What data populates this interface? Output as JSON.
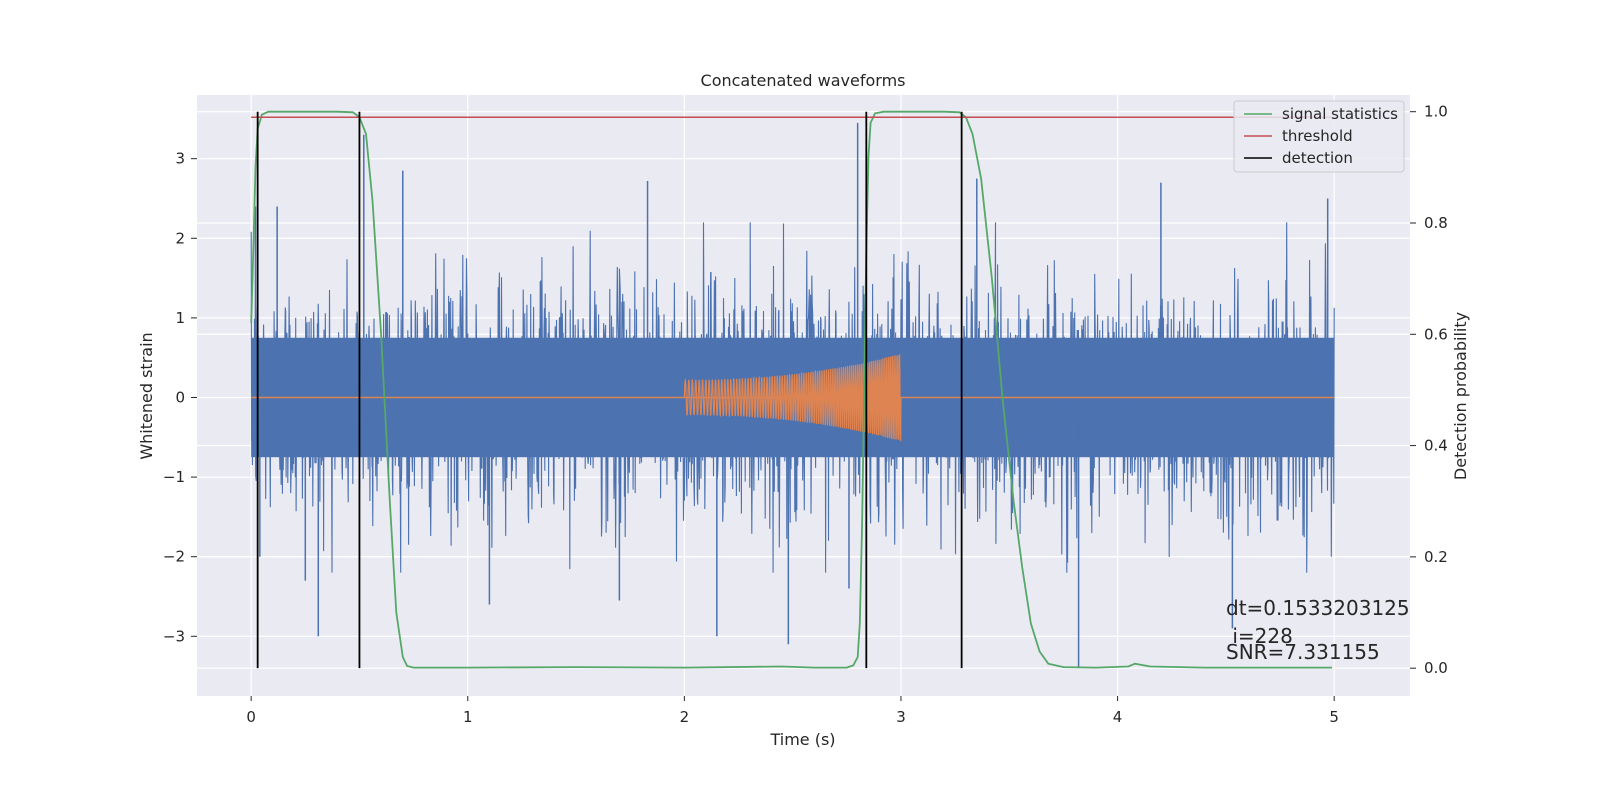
{
  "chart_data": {
    "type": "line",
    "title": "Concatenated waveforms",
    "xlabel": "Time (s)",
    "ylabel": "Whitened strain",
    "ylabel_right": "Detection probability",
    "xlim": [
      -0.25,
      5.35
    ],
    "ylim": [
      -3.75,
      3.8
    ],
    "ylim_right": [
      -0.05,
      1.03
    ],
    "x_ticks": [
      0,
      1,
      2,
      3,
      4,
      5
    ],
    "x_tick_labels": [
      "0",
      "1",
      "2",
      "3",
      "4",
      "5"
    ],
    "y_ticks": [
      -3,
      -2,
      -1,
      0,
      1,
      2,
      3
    ],
    "y_tick_labels": [
      "−3",
      "−2",
      "−1",
      "0",
      "1",
      "2",
      "3"
    ],
    "y2_ticks": [
      0.0,
      0.2,
      0.4,
      0.6,
      0.8,
      1.0
    ],
    "y2_tick_labels": [
      "0.0",
      "0.2",
      "0.4",
      "0.6",
      "0.8",
      "1.0"
    ],
    "grid": true,
    "legend_position": "top-right",
    "colors": {
      "background": "#eaeaf2",
      "grid": "#ffffff",
      "noise": "#4c72b0",
      "injection": "#dd8452",
      "signal_statistics": "#55a868",
      "threshold": "#c44e52",
      "detection": "#000000"
    },
    "series": [
      {
        "name": "signal statistics",
        "axis": "right",
        "x": [
          0.0,
          0.01,
          0.02,
          0.03,
          0.05,
          0.08,
          0.12,
          0.2,
          0.3,
          0.4,
          0.47,
          0.5,
          0.53,
          0.56,
          0.6,
          0.64,
          0.67,
          0.7,
          0.72,
          0.75,
          0.8,
          1.0,
          1.5,
          2.0,
          2.45,
          2.6,
          2.75,
          2.78,
          2.8,
          2.81,
          2.82,
          2.83,
          2.84,
          2.85,
          2.86,
          2.88,
          2.92,
          3.0,
          3.1,
          3.2,
          3.27,
          3.3,
          3.33,
          3.37,
          3.42,
          3.47,
          3.52,
          3.56,
          3.6,
          3.64,
          3.68,
          3.75,
          3.9,
          4.05,
          4.08,
          4.15,
          4.4,
          4.8,
          4.99
        ],
        "y": [
          0.62,
          0.75,
          0.9,
          0.97,
          0.995,
          1.0,
          1.0,
          1.0,
          1.0,
          1.0,
          0.999,
          0.99,
          0.96,
          0.84,
          0.6,
          0.3,
          0.1,
          0.02,
          0.004,
          0.001,
          0.001,
          0.001,
          0.002,
          0.001,
          0.003,
          0.001,
          0.001,
          0.005,
          0.02,
          0.08,
          0.25,
          0.5,
          0.75,
          0.92,
          0.98,
          0.997,
          1.0,
          1.0,
          1.0,
          1.0,
          0.999,
          0.99,
          0.96,
          0.88,
          0.7,
          0.48,
          0.3,
          0.18,
          0.08,
          0.03,
          0.008,
          0.002,
          0.001,
          0.003,
          0.008,
          0.003,
          0.001,
          0.001,
          0.001
        ]
      },
      {
        "name": "threshold",
        "axis": "right",
        "x": [
          0.0,
          4.99
        ],
        "y": [
          0.99,
          0.99
        ]
      },
      {
        "name": "detection",
        "axis": "right",
        "x": [
          0.03,
          0.5,
          2.84,
          3.28
        ],
        "y_range": [
          0.0,
          1.0
        ]
      },
      {
        "name": "",
        "axis": "left",
        "description_kind": "whitened noise",
        "x_range": [
          0.0,
          5.0
        ],
        "core_band": [
          -0.75,
          0.75
        ],
        "extreme_peaks": [
          {
            "x": 0.02,
            "y": 2.4
          },
          {
            "x": 0.04,
            "y": -2.0
          },
          {
            "x": 0.12,
            "y": 2.4
          },
          {
            "x": 0.25,
            "y": -2.3
          },
          {
            "x": 0.31,
            "y": -3.0
          },
          {
            "x": 0.52,
            "y": 3.3
          },
          {
            "x": 0.7,
            "y": 2.85
          },
          {
            "x": 1.1,
            "y": -2.6
          },
          {
            "x": 1.7,
            "y": -2.55
          },
          {
            "x": 1.83,
            "y": 2.72
          },
          {
            "x": 2.15,
            "y": -3.0
          },
          {
            "x": 2.48,
            "y": -3.1
          },
          {
            "x": 2.76,
            "y": -2.4
          },
          {
            "x": 2.8,
            "y": 3.45
          },
          {
            "x": 3.35,
            "y": 2.75
          },
          {
            "x": 3.82,
            "y": -3.4
          },
          {
            "x": 4.2,
            "y": 2.7
          },
          {
            "x": 4.53,
            "y": -2.9
          },
          {
            "x": 4.97,
            "y": 2.5
          }
        ]
      },
      {
        "name": "",
        "axis": "left",
        "description_kind": "injected chirp",
        "x_range": [
          2.0,
          3.0
        ],
        "amplitude": [
          0.22,
          0.55
        ],
        "baseline": 0
      }
    ],
    "annotations": [
      "dt=0.1533203125",
      " i=228",
      "SNR=7.331155"
    ]
  }
}
